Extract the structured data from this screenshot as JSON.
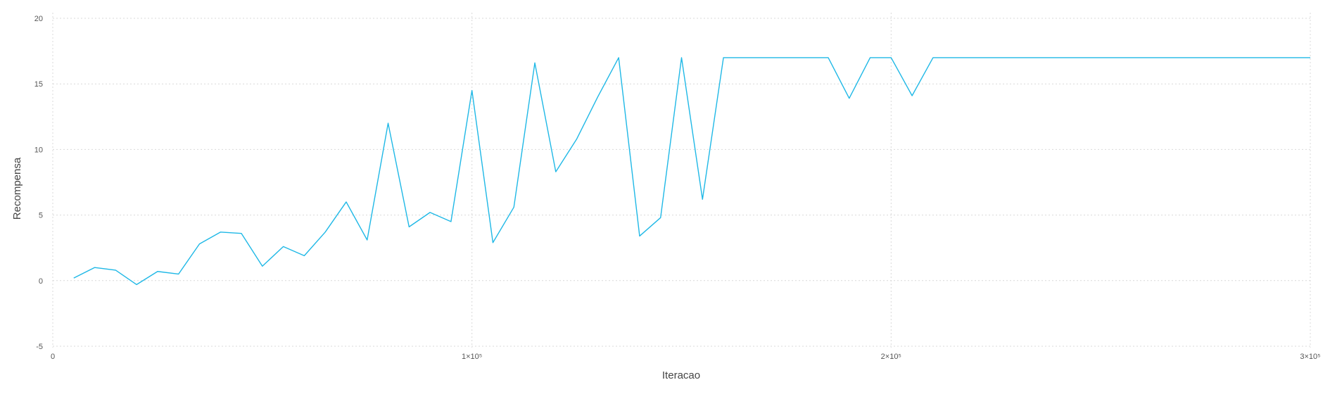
{
  "chart_data": {
    "type": "line",
    "title": "",
    "xlabel": "Iteracao",
    "ylabel": "Recompensa",
    "xlim": [
      0,
      300000
    ],
    "ylim": [
      -5,
      20
    ],
    "grid": true,
    "legend": "none",
    "x_ticks": [
      {
        "value": 0,
        "label": "0"
      },
      {
        "value": 100000,
        "label": "1×10⁵"
      },
      {
        "value": 200000,
        "label": "2×10⁵"
      },
      {
        "value": 300000,
        "label": "3×10⁵"
      }
    ],
    "y_ticks": [
      {
        "value": -5,
        "label": "-5"
      },
      {
        "value": 0,
        "label": "0"
      },
      {
        "value": 5,
        "label": "5"
      },
      {
        "value": 10,
        "label": "10"
      },
      {
        "value": 15,
        "label": "15"
      },
      {
        "value": 20,
        "label": "20"
      }
    ],
    "series": [
      {
        "color": "#1fb8e6",
        "x": [
          5000,
          10000,
          15000,
          20000,
          25000,
          30000,
          35000,
          40000,
          45000,
          50000,
          55000,
          60000,
          65000,
          70000,
          75000,
          80000,
          85000,
          90000,
          95000,
          100000,
          105000,
          110000,
          115000,
          120000,
          125000,
          130000,
          135000,
          140000,
          145000,
          150000,
          155000,
          160000,
          165000,
          170000,
          175000,
          180000,
          185000,
          190000,
          195000,
          200000,
          205000,
          210000,
          215000,
          220000,
          225000,
          230000,
          235000,
          240000,
          245000,
          250000,
          255000,
          260000,
          265000,
          270000,
          275000,
          280000,
          285000,
          290000,
          295000,
          300000
        ],
        "y": [
          0.2,
          1.0,
          0.8,
          -0.3,
          0.7,
          0.5,
          2.8,
          3.7,
          3.6,
          1.1,
          2.6,
          1.9,
          3.7,
          6.0,
          3.1,
          12.0,
          4.1,
          5.2,
          4.5,
          14.5,
          2.9,
          5.6,
          16.6,
          8.3,
          10.8,
          14.0,
          17.0,
          3.4,
          4.8,
          17.0,
          6.2,
          17.0,
          17.0,
          17.0,
          17.0,
          17.0,
          17.0,
          13.9,
          17.0,
          17.0,
          14.1,
          17.0,
          17.0,
          17.0,
          17.0,
          17.0,
          17.0,
          17.0,
          17.0,
          17.0,
          17.0,
          17.0,
          17.0,
          17.0,
          17.0,
          17.0,
          17.0,
          17.0,
          17.0,
          17.0
        ]
      }
    ]
  }
}
